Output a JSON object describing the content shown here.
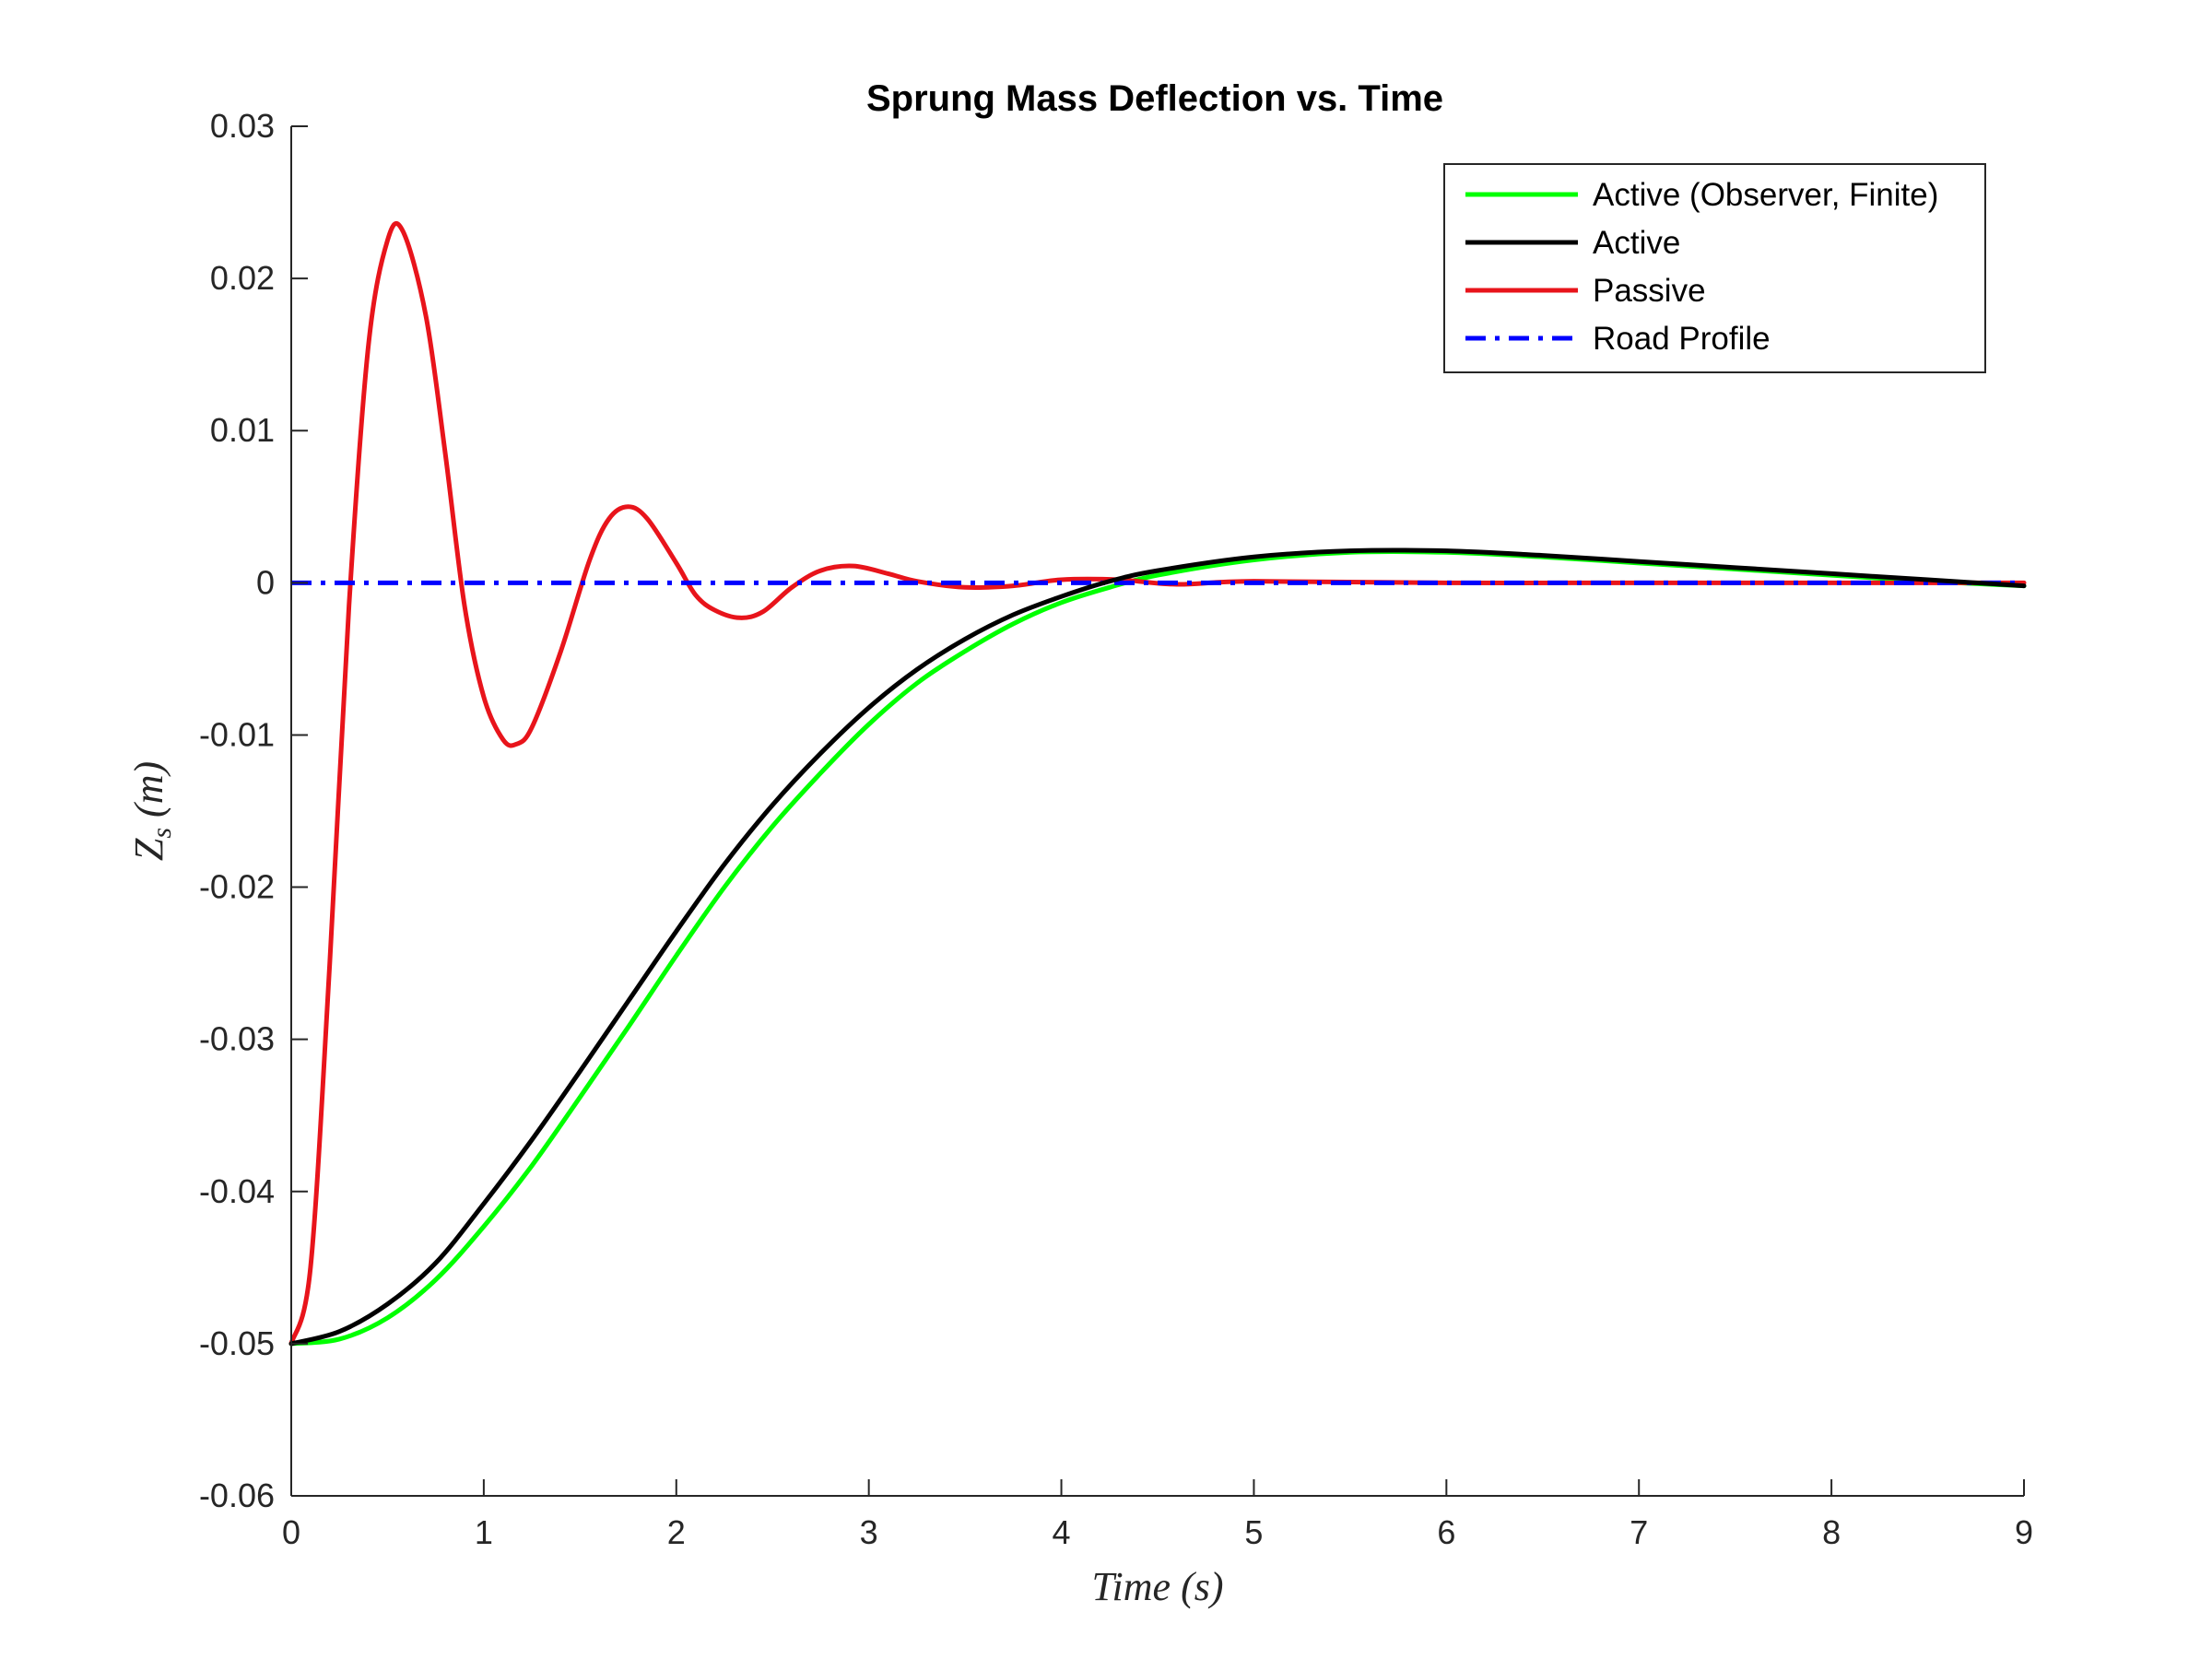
{
  "chart_data": {
    "type": "line",
    "title": "Sprung Mass Deflection vs. Time",
    "xlabel": "Time (s)",
    "ylabel": "Z_s (m)",
    "ylabel_main": "Z",
    "ylabel_sub": "s",
    "ylabel_unit": " (m)",
    "xlim": [
      0,
      9
    ],
    "ylim": [
      -0.06,
      0.03
    ],
    "xticks": [
      0,
      1,
      2,
      3,
      4,
      5,
      6,
      7,
      8,
      9
    ],
    "xtick_labels": [
      "0",
      "1",
      "2",
      "3",
      "4",
      "5",
      "6",
      "7",
      "8",
      "9"
    ],
    "yticks": [
      -0.06,
      -0.05,
      -0.04,
      -0.03,
      -0.02,
      -0.01,
      0,
      0.01,
      0.02,
      0.03
    ],
    "ytick_labels": [
      "-0.06",
      "-0.05",
      "-0.04",
      "-0.03",
      "-0.02",
      "-0.01",
      "0",
      "0.01",
      "0.02",
      "0.03"
    ],
    "grid": false,
    "legend_position": "top-right",
    "series": [
      {
        "name": "Active (Observer, Finite)",
        "color": "#00ff00",
        "style": "solid",
        "x": [
          0,
          0.25,
          0.5,
          0.75,
          1.0,
          1.25,
          1.5,
          1.75,
          2.0,
          2.25,
          2.5,
          2.75,
          3.0,
          3.25,
          3.5,
          3.75,
          4.0,
          4.25,
          4.5,
          5.0,
          5.5,
          6.0,
          6.5,
          7.0,
          7.5,
          8.0,
          8.5,
          9.0
        ],
        "y": [
          -0.05,
          -0.0497,
          -0.0483,
          -0.0458,
          -0.0423,
          -0.0383,
          -0.0338,
          -0.0292,
          -0.0245,
          -0.02,
          -0.016,
          -0.0125,
          -0.0093,
          -0.0066,
          -0.0045,
          -0.0027,
          -0.0013,
          -0.0003,
          0.0005,
          0.0015,
          0.002,
          0.002,
          0.0017,
          0.0013,
          0.0009,
          0.0005,
          0.0001,
          -0.0002
        ]
      },
      {
        "name": "Active",
        "color": "#000000",
        "style": "solid",
        "x": [
          0,
          0.25,
          0.5,
          0.75,
          1.0,
          1.25,
          1.5,
          1.75,
          2.0,
          2.25,
          2.5,
          2.75,
          3.0,
          3.25,
          3.5,
          3.75,
          4.0,
          4.25,
          4.5,
          5.0,
          5.5,
          6.0,
          6.5,
          7.0,
          7.5,
          8.0,
          8.5,
          9.0
        ],
        "y": [
          -0.05,
          -0.0492,
          -0.0474,
          -0.0447,
          -0.0408,
          -0.0366,
          -0.0321,
          -0.0275,
          -0.0229,
          -0.0185,
          -0.0146,
          -0.0112,
          -0.0082,
          -0.0057,
          -0.0037,
          -0.0021,
          -0.0009,
          0.0001,
          0.0008,
          0.0017,
          0.0021,
          0.0021,
          0.0018,
          0.0014,
          0.001,
          0.0006,
          0.0002,
          -0.0002
        ]
      },
      {
        "name": "Passive",
        "color": "#e8141b",
        "style": "solid",
        "x": [
          0,
          0.1,
          0.2,
          0.3,
          0.4,
          0.5,
          0.58,
          0.7,
          0.8,
          0.9,
          1.0,
          1.1,
          1.17,
          1.25,
          1.4,
          1.55,
          1.65,
          1.75,
          1.85,
          2.0,
          2.1,
          2.2,
          2.33,
          2.45,
          2.6,
          2.75,
          2.92,
          3.1,
          3.25,
          3.5,
          3.75,
          4.0,
          4.3,
          4.6,
          5.0,
          6.0,
          7.0,
          8.0,
          9.0
        ],
        "y": [
          -0.05,
          -0.045,
          -0.025,
          -0.0015,
          0.0155,
          0.0225,
          0.0231,
          0.0175,
          0.0085,
          -0.0015,
          -0.0075,
          -0.0103,
          -0.0106,
          -0.0095,
          -0.0045,
          0.0015,
          0.0042,
          0.005,
          0.0042,
          0.0013,
          -0.0008,
          -0.0018,
          -0.0023,
          -0.0019,
          -0.0003,
          0.0008,
          0.0011,
          0.0006,
          0.0001,
          -0.0003,
          -0.0002,
          0.0002,
          0.0002,
          -0.0001,
          0.0001,
          0.0,
          0.0,
          0.0,
          0.0
        ]
      },
      {
        "name": "Road Profile",
        "color": "#0000ff",
        "style": "dashdot",
        "x": [
          0,
          9
        ],
        "y": [
          0,
          0
        ]
      }
    ]
  }
}
